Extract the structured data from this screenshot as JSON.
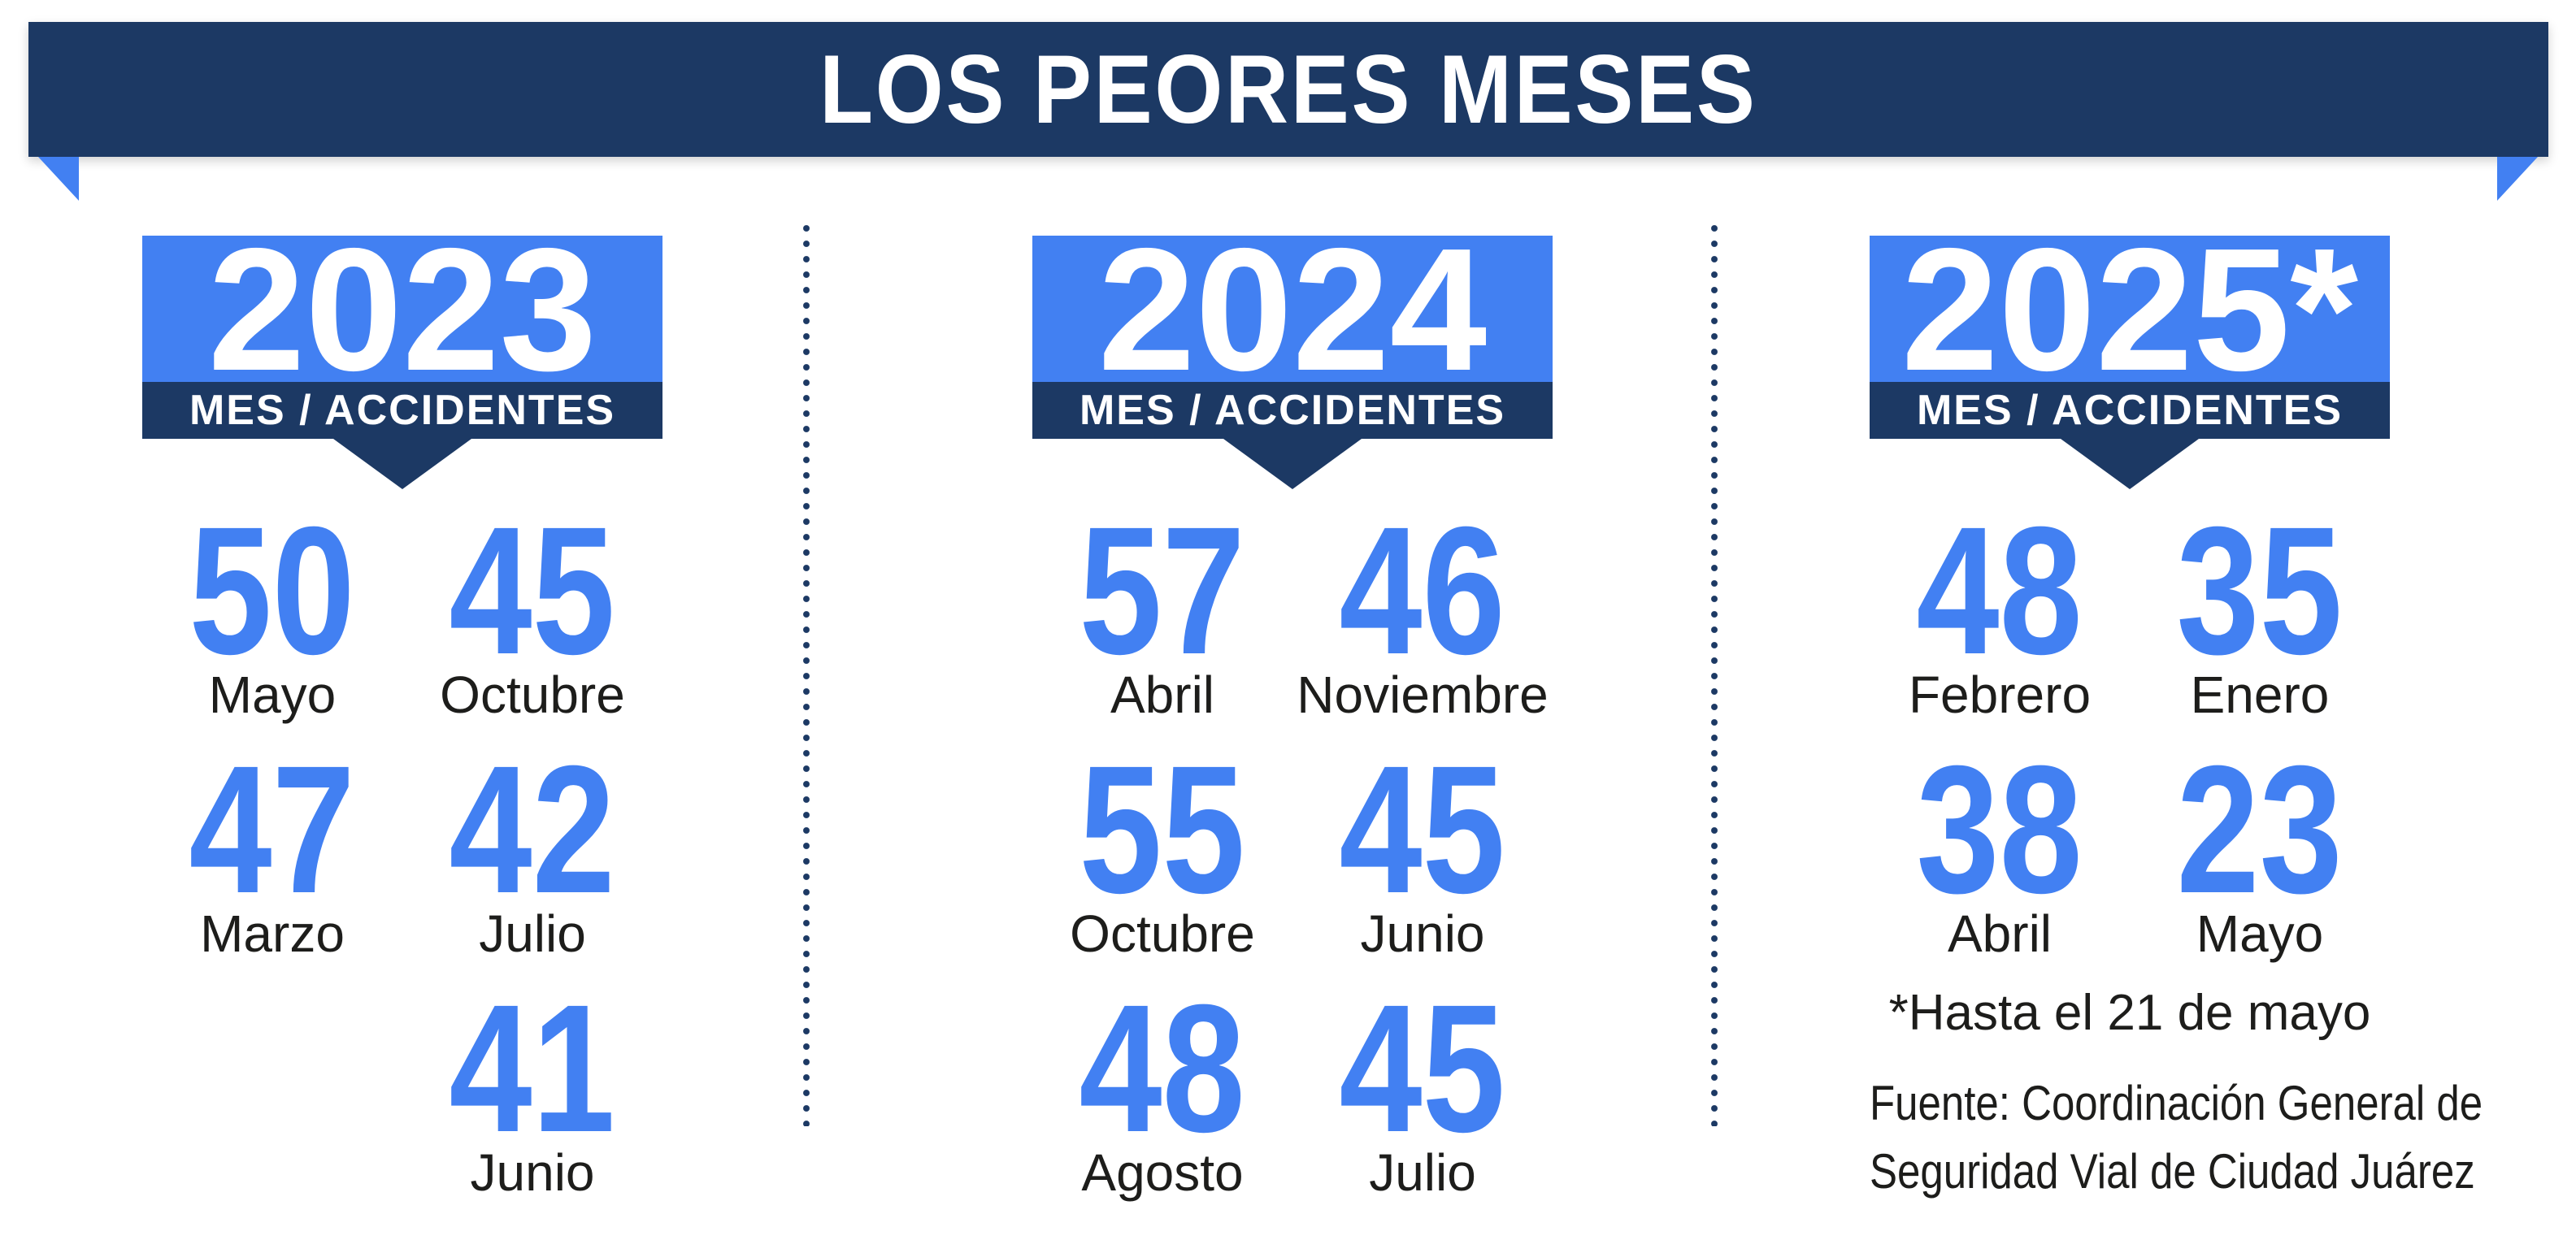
{
  "colors": {
    "navy": "#1c3964",
    "bright_blue": "#4280f2",
    "text_dark": "#1d1d1b",
    "white": "#ffffff"
  },
  "ui": {
    "banner": {
      "title": "LOS PEORES MESES"
    },
    "columns": [
      {
        "year": "2023",
        "subtitle": "MES / ACCIDENTES",
        "rows": [
          [
            {
              "n": "50",
              "m": "Mayo"
            },
            {
              "n": "45",
              "m": "Octubre"
            }
          ],
          [
            {
              "n": "47",
              "m": "Marzo"
            },
            {
              "n": "42",
              "m": "Julio"
            }
          ],
          [
            {
              "n": "",
              "m": ""
            },
            {
              "n": "41",
              "m": "Junio"
            }
          ]
        ]
      },
      {
        "year": "2024",
        "subtitle": "MES / ACCIDENTES",
        "rows": [
          [
            {
              "n": "57",
              "m": "Abril"
            },
            {
              "n": "46",
              "m": "Noviembre"
            }
          ],
          [
            {
              "n": "55",
              "m": "Octubre"
            },
            {
              "n": "45",
              "m": "Junio"
            }
          ],
          [
            {
              "n": "48",
              "m": "Agosto"
            },
            {
              "n": "45",
              "m": "Julio"
            }
          ]
        ]
      },
      {
        "year": "2025*",
        "subtitle": "MES / ACCIDENTES",
        "rows": [
          [
            {
              "n": "48",
              "m": "Febrero"
            },
            {
              "n": "35",
              "m": "Enero"
            }
          ],
          [
            {
              "n": "38",
              "m": "Abril"
            },
            {
              "n": "23",
              "m": "Mayo"
            }
          ]
        ],
        "note": "*Hasta el 21 de mayo",
        "source_line1": "Fuente: Coordinación General de",
        "source_line2": "Seguridad Vial de Ciudad Juárez"
      }
    ]
  },
  "chart_data": [
    {
      "type": "table",
      "title": "LOS PEORES MESES",
      "group": "2023",
      "columns": [
        "Mes",
        "Accidentes"
      ],
      "rows": [
        [
          "Mayo",
          50
        ],
        [
          "Octubre",
          45
        ],
        [
          "Marzo",
          47
        ],
        [
          "Julio",
          42
        ],
        [
          "Junio",
          41
        ]
      ]
    },
    {
      "type": "table",
      "title": "LOS PEORES MESES",
      "group": "2024",
      "columns": [
        "Mes",
        "Accidentes"
      ],
      "rows": [
        [
          "Abril",
          57
        ],
        [
          "Noviembre",
          46
        ],
        [
          "Octubre",
          55
        ],
        [
          "Junio",
          45
        ],
        [
          "Agosto",
          48
        ],
        [
          "Julio",
          45
        ]
      ]
    },
    {
      "type": "table",
      "title": "LOS PEORES MESES",
      "group": "2025 (hasta el 21 de mayo)",
      "columns": [
        "Mes",
        "Accidentes"
      ],
      "rows": [
        [
          "Febrero",
          48
        ],
        [
          "Enero",
          35
        ],
        [
          "Abril",
          38
        ],
        [
          "Mayo",
          23
        ]
      ],
      "note": "*Hasta el 21 de mayo",
      "source": "Fuente: Coordinación General de Seguridad Vial de Ciudad Juárez"
    }
  ]
}
